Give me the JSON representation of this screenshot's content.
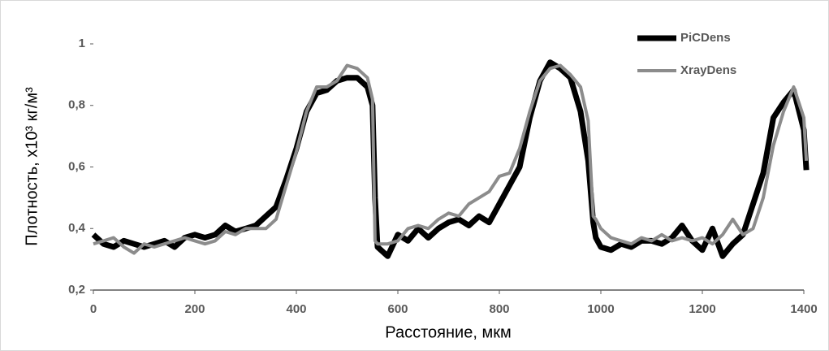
{
  "chart_data": {
    "type": "line",
    "xlabel": "Расстояние, мкм",
    "ylabel": "Плотность, x10³ кг/м³",
    "x": [
      0,
      20,
      40,
      60,
      80,
      100,
      120,
      140,
      160,
      180,
      200,
      220,
      240,
      260,
      280,
      300,
      320,
      340,
      360,
      380,
      400,
      420,
      440,
      460,
      480,
      500,
      520,
      540,
      550,
      555,
      560,
      580,
      600,
      620,
      640,
      660,
      680,
      700,
      720,
      740,
      760,
      780,
      800,
      820,
      840,
      860,
      880,
      900,
      920,
      940,
      960,
      975,
      985,
      990,
      1000,
      1020,
      1040,
      1060,
      1080,
      1100,
      1120,
      1140,
      1160,
      1180,
      1200,
      1220,
      1240,
      1260,
      1280,
      1300,
      1320,
      1340,
      1360,
      1380,
      1400,
      1405
    ],
    "series": [
      {
        "name": "PiCDens",
        "color": "#000000",
        "width": 7,
        "values": [
          0.38,
          0.35,
          0.34,
          0.36,
          0.35,
          0.34,
          0.35,
          0.36,
          0.34,
          0.37,
          0.38,
          0.37,
          0.38,
          0.41,
          0.39,
          0.4,
          0.41,
          0.44,
          0.47,
          0.56,
          0.66,
          0.78,
          0.84,
          0.85,
          0.88,
          0.89,
          0.89,
          0.86,
          0.8,
          0.5,
          0.34,
          0.31,
          0.38,
          0.36,
          0.4,
          0.37,
          0.4,
          0.42,
          0.43,
          0.41,
          0.44,
          0.42,
          0.48,
          0.54,
          0.6,
          0.76,
          0.88,
          0.94,
          0.92,
          0.89,
          0.78,
          0.62,
          0.42,
          0.37,
          0.34,
          0.33,
          0.35,
          0.34,
          0.36,
          0.36,
          0.35,
          0.37,
          0.41,
          0.36,
          0.33,
          0.4,
          0.31,
          0.35,
          0.38,
          0.48,
          0.58,
          0.76,
          0.81,
          0.85,
          0.72,
          0.59
        ]
      },
      {
        "name": "XrayDens",
        "color": "#8c8c8c",
        "width": 4,
        "values": [
          0.35,
          0.36,
          0.37,
          0.34,
          0.32,
          0.35,
          0.34,
          0.35,
          0.36,
          0.37,
          0.36,
          0.35,
          0.36,
          0.39,
          0.38,
          0.4,
          0.4,
          0.4,
          0.43,
          0.54,
          0.65,
          0.78,
          0.86,
          0.86,
          0.88,
          0.93,
          0.92,
          0.89,
          0.82,
          0.36,
          0.35,
          0.35,
          0.36,
          0.4,
          0.41,
          0.4,
          0.43,
          0.45,
          0.44,
          0.48,
          0.5,
          0.52,
          0.57,
          0.58,
          0.66,
          0.78,
          0.88,
          0.92,
          0.93,
          0.9,
          0.86,
          0.75,
          0.44,
          0.43,
          0.4,
          0.37,
          0.36,
          0.35,
          0.37,
          0.36,
          0.38,
          0.36,
          0.37,
          0.36,
          0.37,
          0.35,
          0.38,
          0.43,
          0.38,
          0.4,
          0.5,
          0.67,
          0.78,
          0.86,
          0.76,
          0.62
        ]
      }
    ],
    "xlim": [
      0,
      1400
    ],
    "xticks": [
      0,
      200,
      400,
      600,
      800,
      1000,
      1200,
      1400
    ],
    "ylim": [
      0.2,
      1
    ],
    "yticks": [
      {
        "value": 0.2,
        "label": "0,2"
      },
      {
        "value": 0.4,
        "label": "0,4"
      },
      {
        "value": 0.6,
        "label": "0,6"
      },
      {
        "value": 0.8,
        "label": "0,8"
      },
      1
    ],
    "legend": "top-right"
  }
}
